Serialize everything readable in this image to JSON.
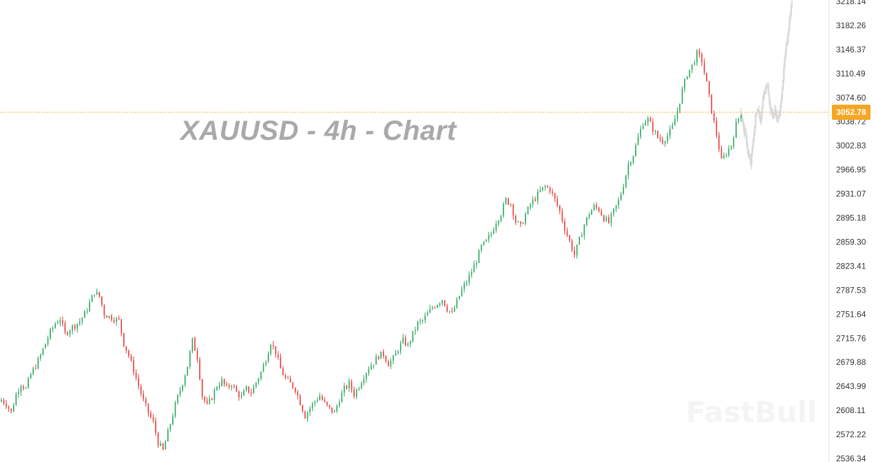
{
  "chart_data": {
    "type": "candlestick",
    "title": "XAUUSD - 4h - Chart",
    "watermark": "FastBull",
    "y_axis": {
      "position": "right",
      "tick_labels": [
        "3218.14",
        "3182.26",
        "3146.37",
        "3110.49",
        "3074.60",
        "3038.72",
        "3002.83",
        "2966.95",
        "2931.07",
        "2895.18",
        "2859.30",
        "2823.41",
        "2787.53",
        "2751.64",
        "2715.76",
        "2679.88",
        "2643.99",
        "2608.11",
        "2572.22",
        "2536.34"
      ],
      "ylim": [
        2536.34,
        3218.14
      ]
    },
    "current_price": "3052.78",
    "current_price_value": 3052.78,
    "colors": {
      "up": "#26a65b",
      "down": "#e53935",
      "projection": "#d9d9d9",
      "price_line": "#f5a623",
      "title": "#a9a9a9"
    },
    "close_path": [
      2624,
      2618,
      2605,
      2632,
      2648,
      2640,
      2662,
      2675,
      2690,
      2708,
      2725,
      2738,
      2745,
      2722,
      2730,
      2735,
      2741,
      2752,
      2768,
      2785,
      2778,
      2752,
      2748,
      2745,
      2742,
      2708,
      2690,
      2668,
      2645,
      2622,
      2605,
      2590,
      2560,
      2548,
      2575,
      2602,
      2628,
      2650,
      2675,
      2712,
      2688,
      2630,
      2615,
      2628,
      2645,
      2652,
      2641,
      2648,
      2635,
      2628,
      2640,
      2635,
      2650,
      2665,
      2685,
      2710,
      2695,
      2670,
      2655,
      2648,
      2640,
      2620,
      2600,
      2612,
      2622,
      2630,
      2618,
      2610,
      2605,
      2625,
      2640,
      2648,
      2632,
      2645,
      2660,
      2672,
      2680,
      2690,
      2692,
      2678,
      2685,
      2700,
      2712,
      2705,
      2722,
      2738,
      2742,
      2752,
      2762,
      2768,
      2774,
      2760,
      2752,
      2770,
      2788,
      2800,
      2815,
      2832,
      2852,
      2860,
      2872,
      2890,
      2902,
      2922,
      2916,
      2890,
      2882,
      2900,
      2915,
      2925,
      2935,
      2942,
      2938,
      2922,
      2905,
      2880,
      2860,
      2840,
      2862,
      2885,
      2902,
      2912,
      2908,
      2895,
      2888,
      2905,
      2920,
      2945,
      2975,
      2990,
      3015,
      3038,
      3042,
      3028,
      3015,
      3010,
      3018,
      3030,
      3055,
      3085,
      3110,
      3122,
      3140,
      3130,
      3095,
      3055,
      3020,
      2980,
      2992,
      3004,
      3035,
      3052.78
    ],
    "projection_path": [
      3052.78,
      3030,
      3015,
      2990,
      2975,
      3010,
      3045,
      3060,
      3040,
      3072,
      3085,
      3095,
      3060,
      3048,
      3055,
      3042,
      3050,
      3090,
      3130,
      3160,
      3190,
      3218
    ]
  }
}
